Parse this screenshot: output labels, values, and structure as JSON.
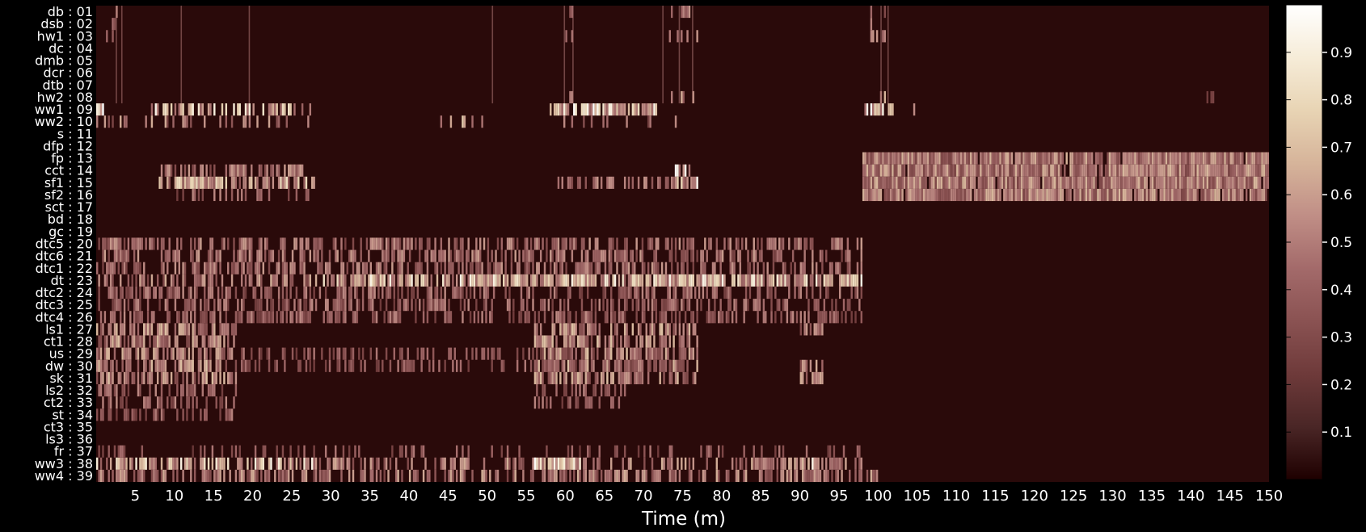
{
  "chart_data": {
    "type": "heatmap",
    "title": "",
    "xlabel": "Time (m)",
    "ylabel": "",
    "xlim": [
      0,
      150
    ],
    "x_ticks": [
      5,
      10,
      15,
      20,
      25,
      30,
      35,
      40,
      45,
      50,
      55,
      60,
      65,
      70,
      75,
      80,
      85,
      90,
      95,
      100,
      105,
      110,
      115,
      120,
      125,
      130,
      135,
      140,
      145,
      150
    ],
    "rows": [
      "db : 01",
      "dsb : 02",
      "hw1 : 03",
      "dc : 04",
      "dmb : 05",
      "dcr : 06",
      "dtb : 07",
      "hw2 : 08",
      "ww1 : 09",
      "ww2 : 10",
      "s : 11",
      "dfp : 12",
      "fp : 13",
      "cct : 14",
      "sf1 : 15",
      "sf2 : 16",
      "sct : 17",
      "bd : 18",
      "gc : 19",
      "dtc5 : 20",
      "dtc6 : 21",
      "dtc1 : 22",
      "dt : 23",
      "dtc2 : 24",
      "dtc3 : 25",
      "dtc4 : 26",
      "ls1 : 27",
      "ct1 : 28",
      "us : 29",
      "dw : 30",
      "sk : 31",
      "ls2 : 32",
      "ct2 : 33",
      "st : 34",
      "ct3 : 35",
      "ls3 : 36",
      "fr : 37",
      "ww3 : 38",
      "ww4 : 39"
    ],
    "colorbar": {
      "range": [
        0,
        1
      ],
      "ticks": [
        0.1,
        0.2,
        0.3,
        0.4,
        0.5,
        0.6,
        0.7,
        0.8,
        0.9
      ],
      "colormap": "pink",
      "stops": [
        "#1e0000",
        "#4a2626",
        "#6e3a3a",
        "#8a5252",
        "#a36a6a",
        "#c08e86",
        "#d6b49a",
        "#e8d4b4",
        "#f6ecd8",
        "#ffffff"
      ]
    },
    "grid": false,
    "background_value": 0.03,
    "bands": [
      {
        "rows": [
          "db : 01",
          "dsb : 02",
          "hw1 : 03"
        ],
        "x": [
          1,
          3
        ],
        "value": 0.55,
        "density": 0.3
      },
      {
        "rows": [
          "db : 01",
          "dsb : 02",
          "hw1 : 03",
          "hw2 : 08"
        ],
        "x": [
          60,
          61
        ],
        "value": 0.6,
        "density": 0.35
      },
      {
        "rows": [
          "db : 01",
          "hw1 : 03",
          "hw2 : 08"
        ],
        "x": [
          73,
          77
        ],
        "value": 0.6,
        "density": 0.3
      },
      {
        "rows": [
          "db : 01",
          "dsb : 02",
          "hw1 : 03",
          "hw2 : 08"
        ],
        "x": [
          99,
          101
        ],
        "value": 0.65,
        "density": 0.35
      },
      {
        "rows": [
          "hw2 : 08"
        ],
        "x": [
          142,
          143
        ],
        "value": 0.5,
        "density": 0.4
      },
      {
        "rows": [
          "ww1 : 09"
        ],
        "x": [
          0,
          1
        ],
        "value": 0.95,
        "density": 0.9
      },
      {
        "rows": [
          "ww1 : 09"
        ],
        "x": [
          7,
          28
        ],
        "value": 0.85,
        "density": 0.55
      },
      {
        "rows": [
          "ww1 : 09"
        ],
        "x": [
          58,
          72
        ],
        "value": 0.9,
        "density": 0.8
      },
      {
        "rows": [
          "ww1 : 09"
        ],
        "x": [
          98,
          102
        ],
        "value": 0.9,
        "density": 0.7
      },
      {
        "rows": [
          "ww1 : 09"
        ],
        "x": [
          103,
          106
        ],
        "value": 0.75,
        "density": 0.4
      },
      {
        "rows": [
          "ww2 : 10"
        ],
        "x": [
          0,
          28
        ],
        "value": 0.6,
        "density": 0.25
      },
      {
        "rows": [
          "ww2 : 10"
        ],
        "x": [
          44,
          50
        ],
        "value": 0.7,
        "density": 0.4
      },
      {
        "rows": [
          "ww2 : 10"
        ],
        "x": [
          58,
          76
        ],
        "value": 0.5,
        "density": 0.2
      },
      {
        "rows": [
          "fp : 13",
          "cct : 14",
          "sf1 : 15",
          "sf2 : 16"
        ],
        "x": [
          98,
          150
        ],
        "value": 0.62,
        "density": 0.95
      },
      {
        "rows": [
          "cct : 14"
        ],
        "x": [
          8,
          28
        ],
        "value": 0.55,
        "density": 0.55
      },
      {
        "rows": [
          "sf1 : 15"
        ],
        "x": [
          8,
          28
        ],
        "value": 0.75,
        "density": 0.8
      },
      {
        "rows": [
          "sf1 : 15"
        ],
        "x": [
          59,
          76
        ],
        "value": 0.55,
        "density": 0.45
      },
      {
        "rows": [
          "cct : 14",
          "sf1 : 15"
        ],
        "x": [
          74,
          77
        ],
        "value": 0.9,
        "density": 0.7
      },
      {
        "rows": [
          "sf2 : 16"
        ],
        "x": [
          8,
          28
        ],
        "value": 0.5,
        "density": 0.35
      },
      {
        "rows": [
          "dtc5 : 20",
          "dtc6 : 21",
          "dtc1 : 22"
        ],
        "x": [
          0,
          98
        ],
        "value": 0.55,
        "density": 0.5
      },
      {
        "rows": [
          "dt : 23"
        ],
        "x": [
          0,
          28
        ],
        "value": 0.6,
        "density": 0.5
      },
      {
        "rows": [
          "dt : 23"
        ],
        "x": [
          28,
          98
        ],
        "value": 0.85,
        "density": 0.85
      },
      {
        "rows": [
          "dtc2 : 24",
          "dtc3 : 25",
          "dtc4 : 26"
        ],
        "x": [
          0,
          98
        ],
        "value": 0.5,
        "density": 0.45
      },
      {
        "rows": [
          "ls1 : 27",
          "ct1 : 28",
          "us : 29",
          "dw : 30",
          "sk : 31"
        ],
        "x": [
          0,
          18
        ],
        "value": 0.65,
        "density": 0.65
      },
      {
        "rows": [
          "ls2 : 32",
          "ct2 : 33",
          "st : 34"
        ],
        "x": [
          0,
          18
        ],
        "value": 0.5,
        "density": 0.45
      },
      {
        "rows": [
          "ls1 : 27",
          "ct1 : 28",
          "us : 29",
          "dw : 30",
          "sk : 31"
        ],
        "x": [
          56,
          77
        ],
        "value": 0.65,
        "density": 0.6
      },
      {
        "rows": [
          "ls2 : 32",
          "ct2 : 33"
        ],
        "x": [
          56,
          68
        ],
        "value": 0.5,
        "density": 0.4
      },
      {
        "rows": [
          "ls1 : 27",
          "dw : 30",
          "sk : 31"
        ],
        "x": [
          90,
          93
        ],
        "value": 0.6,
        "density": 0.6
      },
      {
        "rows": [
          "us : 29",
          "dw : 30"
        ],
        "x": [
          18,
          75
        ],
        "value": 0.45,
        "density": 0.35
      },
      {
        "rows": [
          "ww3 : 38"
        ],
        "x": [
          0,
          28
        ],
        "value": 0.85,
        "density": 0.65
      },
      {
        "rows": [
          "ww3 : 38"
        ],
        "x": [
          28,
          98
        ],
        "value": 0.6,
        "density": 0.4
      },
      {
        "rows": [
          "ww3 : 38"
        ],
        "x": [
          56,
          62
        ],
        "value": 0.95,
        "density": 0.85
      },
      {
        "rows": [
          "ww3 : 38"
        ],
        "x": [
          90,
          93
        ],
        "value": 0.9,
        "density": 0.75
      },
      {
        "rows": [
          "ww4 : 39"
        ],
        "x": [
          0,
          100
        ],
        "value": 0.6,
        "density": 0.55
      },
      {
        "rows": [
          "fr : 37"
        ],
        "x": [
          0,
          100
        ],
        "value": 0.45,
        "density": 0.2
      }
    ]
  }
}
